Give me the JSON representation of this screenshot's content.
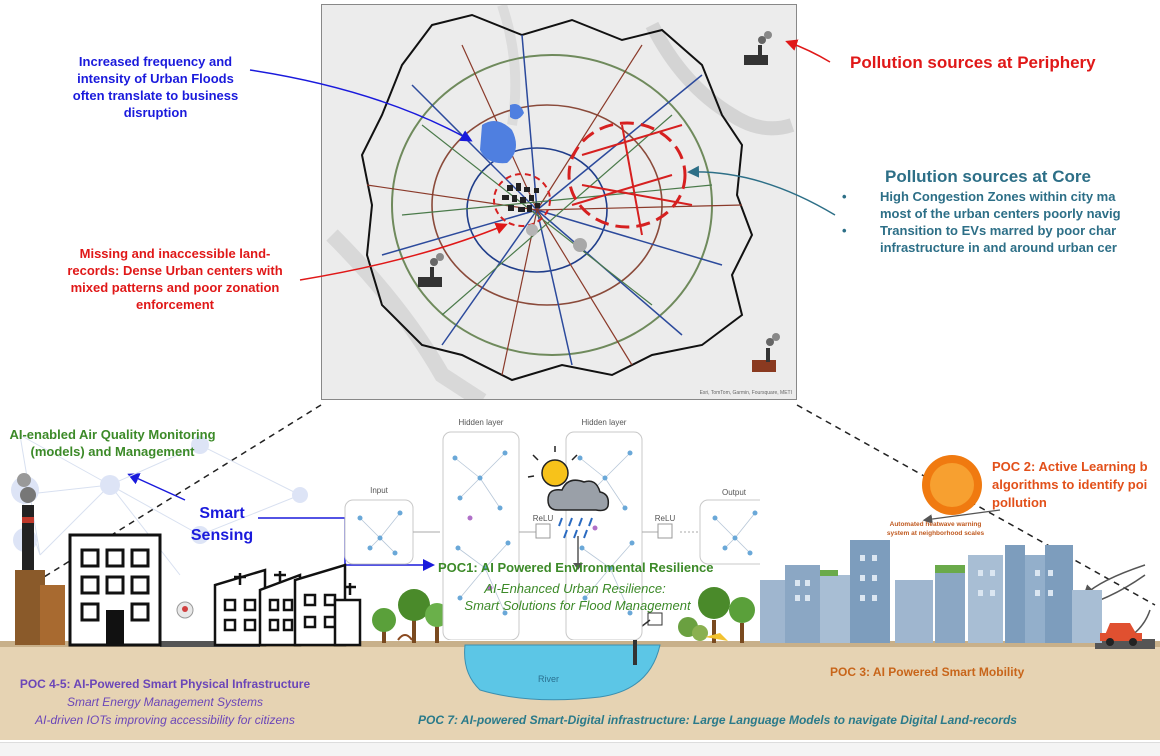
{
  "map": {
    "attribution": "Esri, TomTom, Garmin, Foursquare, METI"
  },
  "annotations": {
    "floods": "Increased frequency and intensity of Urban Floods often translate to business disruption",
    "periphery": "Pollution sources at Periphery",
    "core_title": "Pollution sources at Core",
    "core_bullets": [
      "High Congestion Zones within city ma",
      "most of the urban centers poorly navig",
      "Transition to EVs marred by poor char",
      "infrastructure in and around urban cer"
    ],
    "land_records": "Missing and inaccessible land-records: Dense Urban centers with mixed patterns and poor zonation enforcement"
  },
  "bottom": {
    "air_quality": "AI-enabled Air Quality Monitoring (models) and Management",
    "smart_sensing": "Smart Sensing",
    "nn": {
      "input": "Input",
      "hidden1": "Hidden layer",
      "hidden2": "Hidden layer",
      "relu1": "ReLU",
      "relu2": "ReLU",
      "output": "Output"
    },
    "poc1": {
      "title": "POC1: AI Powered Environmental Resilience",
      "sub1": "AI-Enhanced Urban Resilience:",
      "sub2": "Smart Solutions for Flood Management"
    },
    "poc2": "POC 2: Active Learning b algorithms to identify poi pollution",
    "heatwave": "Automated heatwave warning system at neighborhood scales",
    "poc3": "POC 3: AI Powered Smart Mobility",
    "poc45": {
      "title": "POC 4-5: AI-Powered Smart Physical Infrastructure",
      "sub1": "Smart Energy Management Systems",
      "sub2": "AI-driven IOTs improving  accessibility for citizens"
    },
    "poc7": "POC 7: AI-powered Smart-Digital infrastructure: Large Language Models to navigate Digital Land-records",
    "river": "River"
  },
  "colors": {
    "blue_text": "#1a1adc",
    "red_text": "#e01818",
    "teal_text": "#2d6f87",
    "green_text": "#3c8a28",
    "orange_text": "#e2501a",
    "ground": "#e6d3b3",
    "river": "#5cc6e6"
  }
}
